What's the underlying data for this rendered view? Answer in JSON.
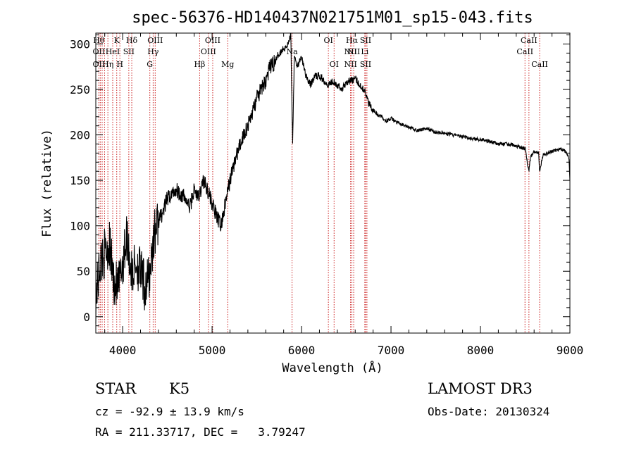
{
  "chart_data": {
    "type": "line",
    "title": "spec-56376-HD140437N021751M01_sp15-043.fits",
    "xlabel": "Wavelength (Å)",
    "ylabel": "Flux (relative)",
    "xlim": [
      3700,
      9000
    ],
    "ylim": [
      -18,
      312
    ],
    "xticks": [
      4000,
      5000,
      6000,
      7000,
      8000,
      9000
    ],
    "xtick_labels": [
      "4000",
      "5000",
      "6000",
      "7000",
      "8000",
      "9000"
    ],
    "yticks": [
      0,
      50,
      100,
      150,
      200,
      250,
      300
    ],
    "ytick_labels": [
      "0",
      "50",
      "100",
      "150",
      "200",
      "250",
      "300"
    ],
    "grid": false,
    "line_color": "#000000",
    "marker_color": "#cc2222",
    "series": [
      {
        "x": [
          3700,
          3750,
          3800,
          3850,
          3900,
          3950,
          4000,
          4050,
          4100,
          4150,
          4200,
          4250,
          4300,
          4350,
          4400,
          4450,
          4500,
          4550,
          4600,
          4650,
          4700,
          4750,
          4800,
          4850,
          4900,
          4950,
          5000,
          5050,
          5100,
          5150,
          5200,
          5250,
          5300,
          5350,
          5400,
          5450,
          5500,
          5550,
          5600,
          5650,
          5700,
          5750,
          5800,
          5850,
          5880,
          5900,
          5920,
          5950,
          6000,
          6050,
          6100,
          6150,
          6200,
          6250,
          6300,
          6350,
          6400,
          6450,
          6500,
          6550,
          6600,
          6650,
          6700,
          6750,
          6800,
          6850,
          6900,
          6950,
          7000,
          7100,
          7200,
          7300,
          7400,
          7500,
          7600,
          7700,
          7800,
          7900,
          8000,
          8100,
          8200,
          8300,
          8400,
          8450,
          8500,
          8540,
          8560,
          8600,
          8650,
          8660,
          8700,
          8800,
          8900,
          8950,
          8990,
          9000
        ],
        "values": [
          20,
          60,
          70,
          80,
          40,
          30,
          60,
          90,
          45,
          60,
          50,
          30,
          45,
          90,
          105,
          115,
          130,
          135,
          140,
          135,
          130,
          120,
          140,
          130,
          150,
          140,
          125,
          110,
          100,
          125,
          150,
          170,
          185,
          200,
          210,
          225,
          240,
          250,
          260,
          275,
          280,
          290,
          295,
          300,
          310,
          190,
          290,
          275,
          285,
          265,
          255,
          265,
          265,
          260,
          255,
          260,
          255,
          250,
          258,
          260,
          262,
          255,
          250,
          235,
          228,
          222,
          220,
          215,
          218,
          212,
          208,
          205,
          207,
          203,
          202,
          200,
          198,
          196,
          195,
          193,
          190,
          190,
          188,
          186,
          185,
          160,
          175,
          182,
          180,
          160,
          178,
          182,
          184,
          182,
          175,
          150
        ]
      }
    ],
    "lines": [
      {
        "x": 3734,
        "labels": [
          "Hθ",
          "OII",
          "OII"
        ]
      },
      {
        "x": 3750,
        "labels": [
          "",
          "",
          ""
        ]
      },
      {
        "x": 3771,
        "labels": [
          "",
          "",
          ""
        ]
      },
      {
        "x": 3798,
        "labels": [
          "",
          "",
          ""
        ]
      },
      {
        "x": 3835,
        "labels": [
          "",
          "",
          "Hη"
        ]
      },
      {
        "x": 3889,
        "labels": [
          "",
          "HeI",
          ""
        ]
      },
      {
        "x": 3934,
        "labels": [
          "K",
          "",
          ""
        ]
      },
      {
        "x": 3969,
        "labels": [
          "",
          "",
          "H"
        ]
      },
      {
        "x": 4069,
        "labels": [
          "",
          "SII",
          ""
        ]
      },
      {
        "x": 4102,
        "labels": [
          "Hδ",
          "",
          ""
        ]
      },
      {
        "x": 4304,
        "labels": [
          "",
          "",
          "G"
        ]
      },
      {
        "x": 4341,
        "labels": [
          "",
          "Hγ",
          ""
        ]
      },
      {
        "x": 4364,
        "labels": [
          "OIII",
          "",
          ""
        ]
      },
      {
        "x": 4861,
        "labels": [
          "",
          "",
          "Hβ"
        ]
      },
      {
        "x": 4959,
        "labels": [
          "",
          "OIII",
          ""
        ]
      },
      {
        "x": 5007,
        "labels": [
          "OIII",
          "",
          ""
        ]
      },
      {
        "x": 5175,
        "labels": [
          "",
          "",
          "Mg"
        ]
      },
      {
        "x": 5894,
        "labels": [
          "",
          "Na",
          ""
        ]
      },
      {
        "x": 6300,
        "labels": [
          "OI",
          "",
          ""
        ]
      },
      {
        "x": 6364,
        "labels": [
          "",
          "",
          "OI"
        ]
      },
      {
        "x": 6548,
        "labels": [
          "",
          "NII",
          "NII"
        ]
      },
      {
        "x": 6563,
        "labels": [
          "Hα",
          "",
          ""
        ]
      },
      {
        "x": 6583,
        "labels": [
          "",
          "NII",
          ""
        ]
      },
      {
        "x": 6707,
        "labels": [
          "",
          "Li",
          ""
        ]
      },
      {
        "x": 6716,
        "labels": [
          "SII",
          "",
          "SII"
        ]
      },
      {
        "x": 6731,
        "labels": [
          "",
          "",
          ""
        ]
      },
      {
        "x": 8498,
        "labels": [
          "",
          "CaII",
          ""
        ]
      },
      {
        "x": 8542,
        "labels": [
          "CaII",
          "",
          ""
        ]
      },
      {
        "x": 8662,
        "labels": [
          "",
          "",
          "CaII"
        ]
      }
    ]
  },
  "footer": {
    "object_class": "STAR",
    "subclass": "K5",
    "survey": "LAMOST DR3",
    "cz": "cz = -92.9 ± 13.9 km/s",
    "obs_date": "Obs-Date: 20130324",
    "coords": "RA = 211.33717, DEC =   3.79247"
  }
}
